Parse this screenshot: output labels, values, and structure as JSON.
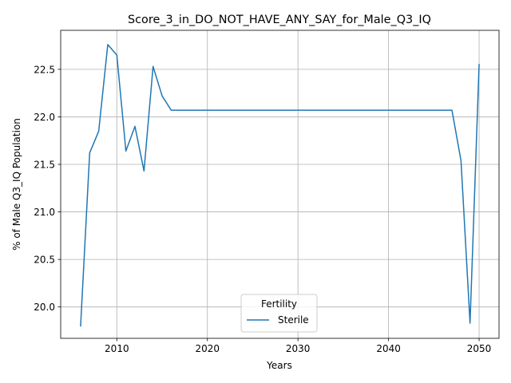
{
  "chart_data": {
    "type": "line",
    "title": "Score_3_in_DO_NOT_HAVE_ANY_SAY_for_Male_Q3_IQ",
    "xlabel": "Years",
    "ylabel": "% of Male Q3_IQ Population",
    "xlim": [
      2003.8,
      2052.2
    ],
    "ylim": [
      19.67,
      22.91
    ],
    "xticks": [
      2010,
      2020,
      2030,
      2040,
      2050
    ],
    "yticks": [
      20.0,
      20.5,
      21.0,
      21.5,
      22.0,
      22.5
    ],
    "grid": true,
    "legend": {
      "title": "Fertility",
      "placement": "lower-center"
    },
    "series": [
      {
        "name": "Sterile",
        "color": "#1f77b4",
        "x": [
          2006,
          2007,
          2008,
          2009,
          2010,
          2011,
          2012,
          2013,
          2014,
          2015,
          2016,
          2017,
          2018,
          2019,
          2020,
          2021,
          2022,
          2023,
          2024,
          2025,
          2026,
          2027,
          2028,
          2029,
          2030,
          2031,
          2032,
          2033,
          2034,
          2035,
          2036,
          2037,
          2038,
          2039,
          2040,
          2041,
          2042,
          2043,
          2044,
          2045,
          2046,
          2047,
          2048,
          2049,
          2050
        ],
        "values": [
          19.8,
          21.62,
          21.85,
          22.76,
          22.65,
          21.64,
          21.9,
          21.43,
          22.53,
          22.22,
          22.07,
          22.07,
          22.07,
          22.07,
          22.07,
          22.07,
          22.07,
          22.07,
          22.07,
          22.07,
          22.07,
          22.07,
          22.07,
          22.07,
          22.07,
          22.07,
          22.07,
          22.07,
          22.07,
          22.07,
          22.07,
          22.07,
          22.07,
          22.07,
          22.07,
          22.07,
          22.07,
          22.07,
          22.07,
          22.07,
          22.07,
          22.07,
          21.54,
          19.83,
          22.55
        ]
      }
    ]
  }
}
